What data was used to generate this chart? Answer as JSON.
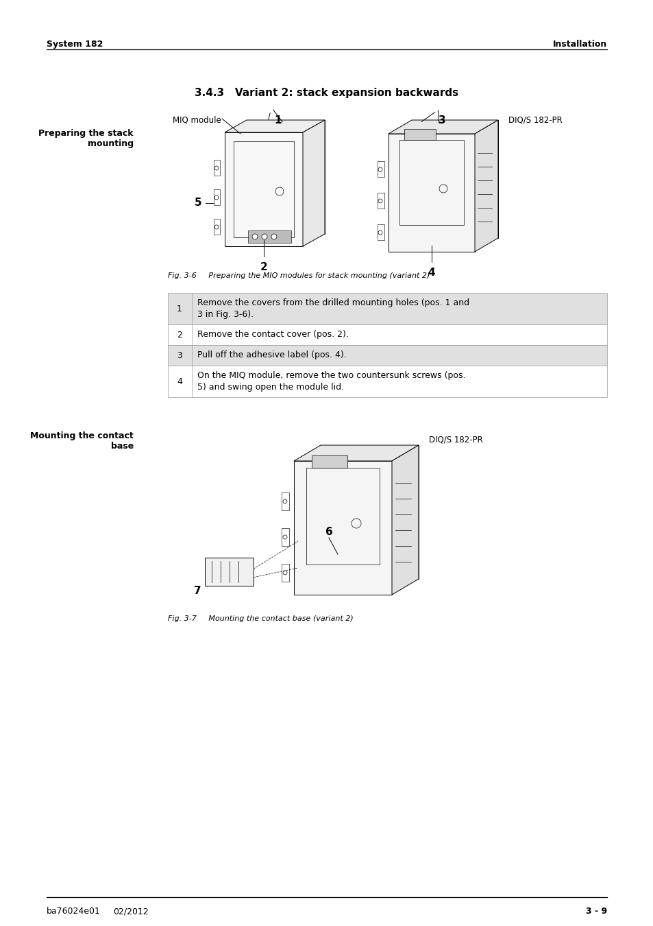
{
  "page_bg": "#ffffff",
  "header_left": "System 182",
  "header_right": "Installation",
  "section_title": "3.4.3   Variant 2: stack expansion backwards",
  "left_label1": "Preparing the stack",
  "left_label2": "mounting",
  "fig_caption1": "Fig. 3-6     Preparing the MIQ modules for stack mounting (variant 2)",
  "left_label3": "Mounting the contact",
  "left_label4": "base",
  "fig_caption2": "Fig. 3-7     Mounting the contact base (variant 2)",
  "miq_label": "MIQ module",
  "diq_label1": "DIQ/S 182-PR",
  "diq_label2": "DIQ/S 182-PR",
  "num1": "1",
  "num2": "2",
  "num3": "3",
  "num4": "4",
  "num5": "5",
  "num6": "6",
  "num7": "7",
  "table_rows": [
    [
      "1",
      "Remove the covers from the drilled mounting holes (pos. 1 and\n3 in Fig. 3-6)."
    ],
    [
      "2",
      "Remove the contact cover (pos. 2)."
    ],
    [
      "3",
      "Pull off the adhesive label (pos. 4)."
    ],
    [
      "4",
      "On the MIQ module, remove the two countersunk screws (pos.\n5) and swing open the module lid."
    ]
  ],
  "footer_left1": "ba76024e01",
  "footer_left2": "02/2012",
  "footer_right": "3 - 9",
  "text_color": "#000000",
  "table_shade": "#e0e0e0",
  "title_fontsize": 11,
  "body_fontsize": 9,
  "header_fontsize": 9,
  "footer_fontsize": 9
}
